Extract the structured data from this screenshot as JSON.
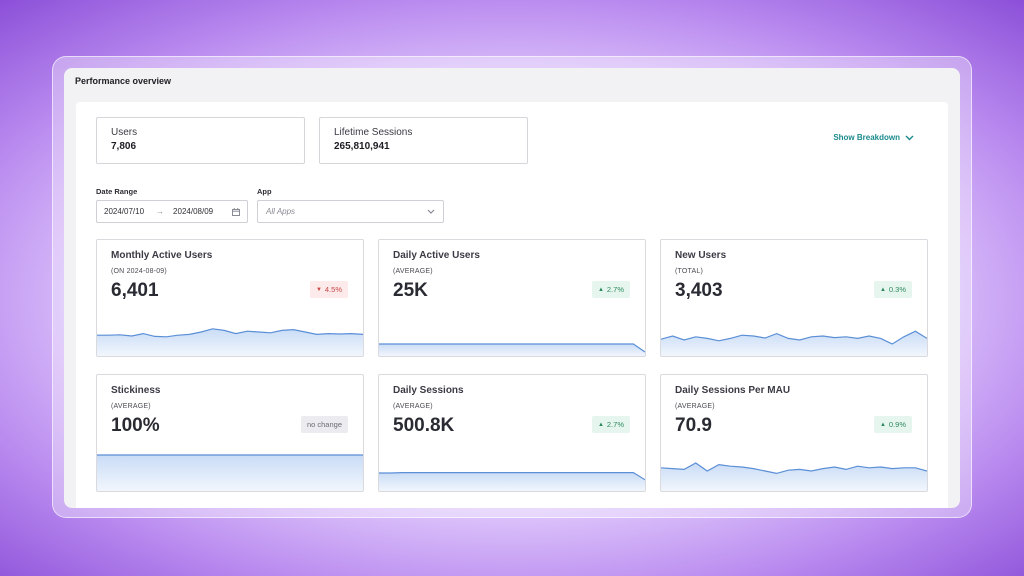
{
  "title": "Performance overview",
  "summary": {
    "users": {
      "label": "Users",
      "value": "7,806"
    },
    "sessions": {
      "label": "Lifetime Sessions",
      "value": "265,810,941"
    }
  },
  "breakdown": {
    "label": "Show Breakdown",
    "icon": "chevron-down-icon"
  },
  "filters": {
    "date_label": "Date Range",
    "date_start": "2024/07/10",
    "date_end": "2024/08/09",
    "app_label": "App",
    "app_placeholder": "All Apps"
  },
  "colors": {
    "line": "#5b8fd6",
    "fill": "#c9dcf6",
    "down": "#c84848",
    "up": "#2e8a5e",
    "accent": "#1b8a8c"
  },
  "cards": [
    {
      "title": "Monthly Active Users",
      "sub": "(ON 2024-08-09)",
      "value": "6,401",
      "delta": "4.5%",
      "trend": "down",
      "spark": [
        0.48,
        0.48,
        0.47,
        0.5,
        0.44,
        0.51,
        0.52,
        0.48,
        0.46,
        0.4,
        0.32,
        0.36,
        0.44,
        0.38,
        0.4,
        0.42,
        0.36,
        0.34,
        0.4,
        0.46,
        0.44,
        0.45,
        0.44,
        0.46
      ]
    },
    {
      "title": "Daily Active Users",
      "sub": "(AVERAGE)",
      "value": "25K",
      "delta": "2.7%",
      "trend": "up",
      "spark": [
        0.7,
        0.7,
        0.7,
        0.7,
        0.7,
        0.7,
        0.7,
        0.7,
        0.7,
        0.7,
        0.7,
        0.7,
        0.7,
        0.7,
        0.7,
        0.7,
        0.7,
        0.7,
        0.7,
        0.7,
        0.7,
        0.7,
        0.7,
        0.9
      ]
    },
    {
      "title": "New Users",
      "sub": "(TOTAL)",
      "value": "3,403",
      "delta": "0.3%",
      "trend": "up",
      "spark": [
        0.58,
        0.5,
        0.6,
        0.52,
        0.56,
        0.62,
        0.56,
        0.48,
        0.5,
        0.55,
        0.44,
        0.56,
        0.6,
        0.52,
        0.5,
        0.54,
        0.52,
        0.56,
        0.5,
        0.56,
        0.7,
        0.52,
        0.38,
        0.56
      ]
    },
    {
      "title": "Stickiness",
      "sub": "(AVERAGE)",
      "value": "100%",
      "delta": "no change",
      "trend": "flat",
      "spark": [
        0.1,
        0.1,
        0.1,
        0.1,
        0.1,
        0.1,
        0.1,
        0.1,
        0.1,
        0.1,
        0.1,
        0.1,
        0.1,
        0.1,
        0.1,
        0.1,
        0.1,
        0.1,
        0.1,
        0.1,
        0.1,
        0.1,
        0.1,
        0.1
      ]
    },
    {
      "title": "Daily Sessions",
      "sub": "(AVERAGE)",
      "value": "500.8K",
      "delta": "2.7%",
      "trend": "up",
      "spark": [
        0.55,
        0.55,
        0.54,
        0.54,
        0.54,
        0.54,
        0.54,
        0.54,
        0.54,
        0.54,
        0.54,
        0.54,
        0.54,
        0.54,
        0.54,
        0.54,
        0.54,
        0.54,
        0.54,
        0.54,
        0.54,
        0.54,
        0.54,
        0.72
      ]
    },
    {
      "title": "Daily Sessions Per MAU",
      "sub": "(AVERAGE)",
      "value": "70.9",
      "delta": "0.9%",
      "trend": "up",
      "spark": [
        0.42,
        0.44,
        0.46,
        0.3,
        0.5,
        0.34,
        0.38,
        0.4,
        0.44,
        0.5,
        0.56,
        0.48,
        0.46,
        0.5,
        0.44,
        0.4,
        0.46,
        0.38,
        0.42,
        0.4,
        0.44,
        0.42,
        0.42,
        0.5
      ]
    }
  ]
}
